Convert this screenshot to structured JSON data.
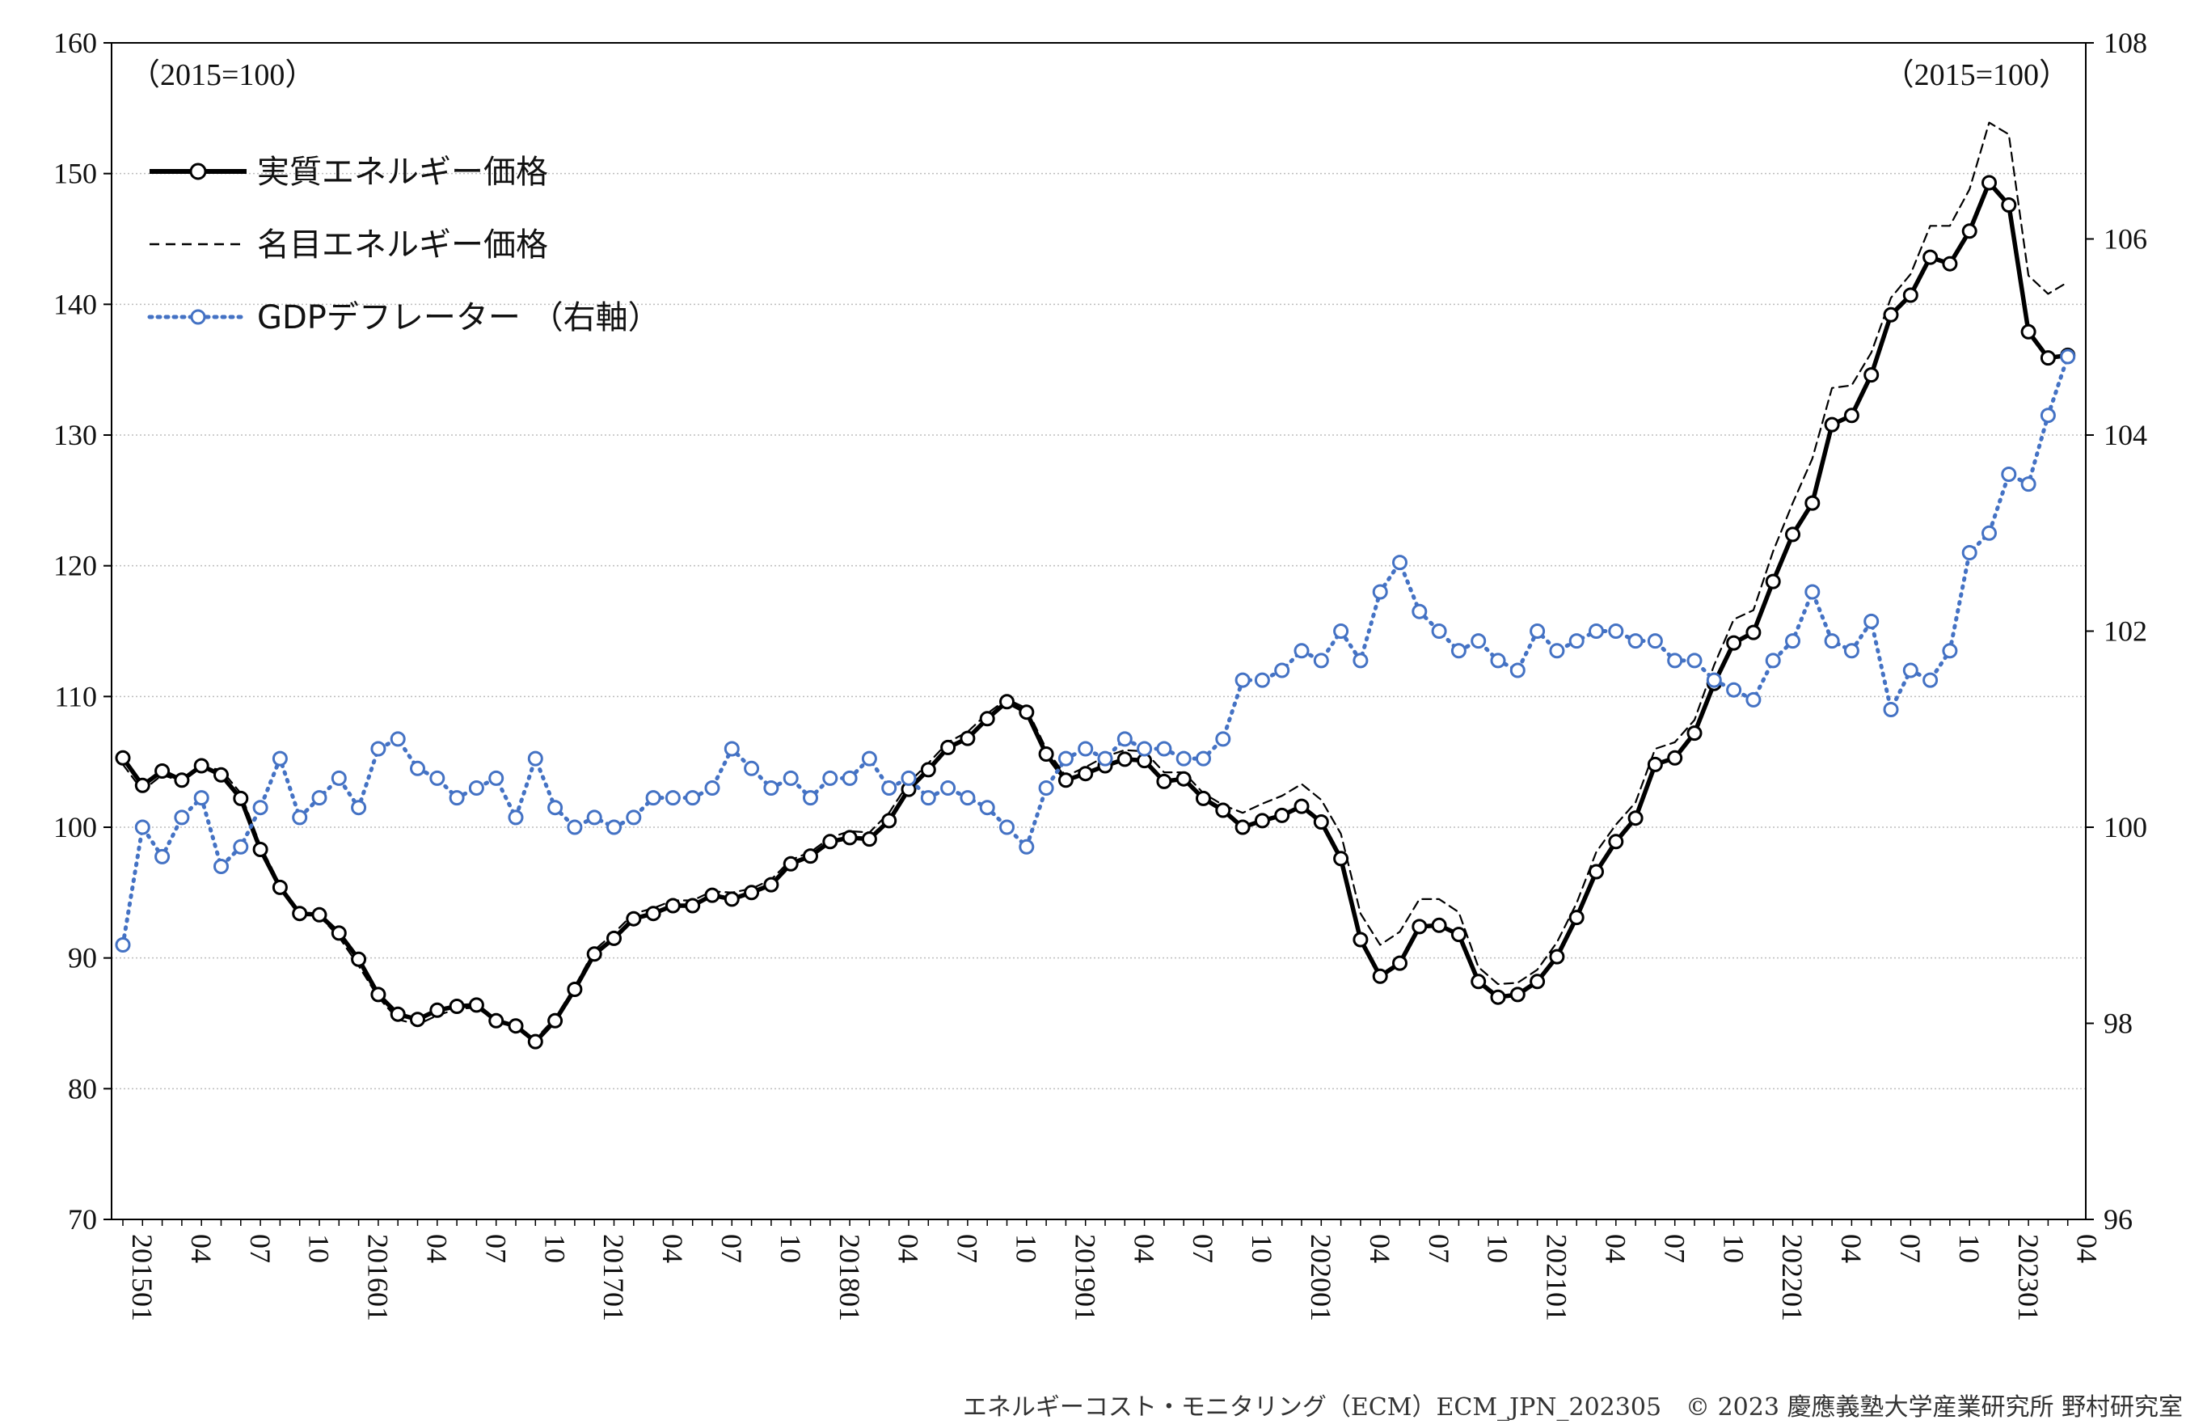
{
  "chart_data": {
    "type": "line",
    "left_unit": "（2015=100）",
    "right_unit": "（2015=100）",
    "footer": "エネルギーコスト・モニタリング（ECM）ECM_JPN_202305　© 2023 慶應義塾大学産業研究所 野村研究室",
    "left_axis": {
      "min": 70,
      "max": 160,
      "step": 10,
      "ticks": [
        "70",
        "80",
        "90",
        "100",
        "110",
        "120",
        "130",
        "140",
        "150",
        "160"
      ]
    },
    "right_axis": {
      "min": 96,
      "max": 108,
      "step": 2,
      "ticks": [
        "96",
        "98",
        "100",
        "102",
        "104",
        "106",
        "108"
      ]
    },
    "x_start": "201501",
    "x_labels": [
      "201501",
      "04",
      "07",
      "10",
      "201601",
      "04",
      "07",
      "10",
      "201701",
      "04",
      "07",
      "10",
      "201801",
      "04",
      "07",
      "10",
      "201901",
      "04",
      "07",
      "10",
      "202001",
      "04",
      "07",
      "10",
      "202101",
      "04",
      "07",
      "10",
      "202201",
      "04",
      "07",
      "10",
      "202301",
      "04"
    ],
    "legend": [
      "実質エネルギー価格",
      "名目エネルギー価格",
      "GDPデフレーター （右軸）"
    ],
    "colors": {
      "real": "#000000",
      "nominal": "#000000",
      "deflator": "#4472C4"
    },
    "series": [
      {
        "name": "実質エネルギー価格",
        "axis": "left",
        "values": [
          105.3,
          103.2,
          104.3,
          103.6,
          104.7,
          104.0,
          102.2,
          98.3,
          95.4,
          93.4,
          93.3,
          91.9,
          89.9,
          87.2,
          85.7,
          85.3,
          86.0,
          86.3,
          86.4,
          85.2,
          84.8,
          83.6,
          85.2,
          87.6,
          90.3,
          91.5,
          93.0,
          93.4,
          94.0,
          94.0,
          94.8,
          94.5,
          95.0,
          95.6,
          97.2,
          97.8,
          98.9,
          99.2,
          99.1,
          100.5,
          102.9,
          104.4,
          106.1,
          106.8,
          108.3,
          109.6,
          108.8,
          105.6,
          103.6,
          104.1,
          104.7,
          105.2,
          105.1,
          103.5,
          103.7,
          102.2,
          101.3,
          100.0,
          100.5,
          100.9,
          101.6,
          100.4,
          97.6,
          91.4,
          88.6,
          89.6,
          92.4,
          92.5,
          91.8,
          88.2,
          87.0,
          87.2,
          88.2,
          90.1,
          93.1,
          96.6,
          98.9,
          100.7,
          104.8,
          105.3,
          107.2,
          111.0,
          114.1,
          114.9,
          118.8,
          122.4,
          124.8,
          130.8,
          131.5,
          134.6,
          139.2,
          140.7,
          143.6,
          143.1,
          145.6,
          149.3,
          147.6,
          137.9,
          135.9,
          136.1
        ]
      },
      {
        "name": "名目エネルギー価格",
        "axis": "left",
        "values": [
          104.8,
          102.8,
          104.0,
          103.5,
          104.6,
          104.4,
          102.6,
          98.6,
          95.6,
          93.5,
          93.2,
          91.6,
          89.4,
          87.0,
          85.3,
          84.9,
          85.6,
          86.1,
          86.2,
          85.2,
          84.8,
          83.8,
          85.4,
          87.8,
          90.6,
          91.9,
          93.4,
          93.8,
          94.4,
          94.4,
          95.1,
          95.0,
          95.3,
          96.0,
          97.5,
          98.1,
          99.2,
          99.7,
          99.6,
          101.1,
          103.4,
          104.9,
          106.5,
          107.3,
          108.7,
          109.8,
          109.1,
          106.0,
          103.9,
          104.6,
          105.4,
          105.9,
          105.8,
          104.2,
          104.2,
          102.6,
          101.7,
          101.1,
          101.8,
          102.4,
          103.3,
          102.1,
          99.5,
          93.4,
          91.0,
          92.0,
          94.5,
          94.5,
          93.5,
          89.3,
          88.0,
          88.1,
          89.1,
          91.2,
          94.2,
          98.1,
          100.2,
          101.9,
          106.0,
          106.5,
          108.2,
          112.4,
          115.9,
          116.6,
          121.1,
          124.8,
          128.2,
          133.6,
          133.8,
          136.3,
          140.5,
          142.3,
          146.0,
          146.0,
          148.8,
          153.9,
          153.0,
          142.2,
          140.8,
          141.7
        ]
      },
      {
        "name": "GDPデフレーター （右軸）",
        "axis": "right",
        "values": [
          98.8,
          100.0,
          99.7,
          100.1,
          100.3,
          99.6,
          99.8,
          100.2,
          100.7,
          100.1,
          100.3,
          100.5,
          100.2,
          100.8,
          100.9,
          100.6,
          100.5,
          100.3,
          100.4,
          100.5,
          100.1,
          100.7,
          100.2,
          100.0,
          100.1,
          100.0,
          100.1,
          100.3,
          100.3,
          100.3,
          100.4,
          100.8,
          100.6,
          100.4,
          100.5,
          100.3,
          100.5,
          100.5,
          100.7,
          100.4,
          100.5,
          100.3,
          100.4,
          100.3,
          100.2,
          100.0,
          99.8,
          100.4,
          100.7,
          100.8,
          100.7,
          100.9,
          100.8,
          100.8,
          100.7,
          100.7,
          100.9,
          101.5,
          101.5,
          101.6,
          101.8,
          101.7,
          102.0,
          101.7,
          102.4,
          102.7,
          102.2,
          102.0,
          101.8,
          101.9,
          101.7,
          101.6,
          102.0,
          101.8,
          101.9,
          102.0,
          102.0,
          101.9,
          101.9,
          101.7,
          101.7,
          101.5,
          101.4,
          101.3,
          101.7,
          101.9,
          102.4,
          101.9,
          101.8,
          102.1,
          101.2,
          101.6,
          101.5,
          101.8,
          102.8,
          103.0,
          103.6,
          103.5,
          104.2,
          104.8
        ]
      }
    ]
  }
}
